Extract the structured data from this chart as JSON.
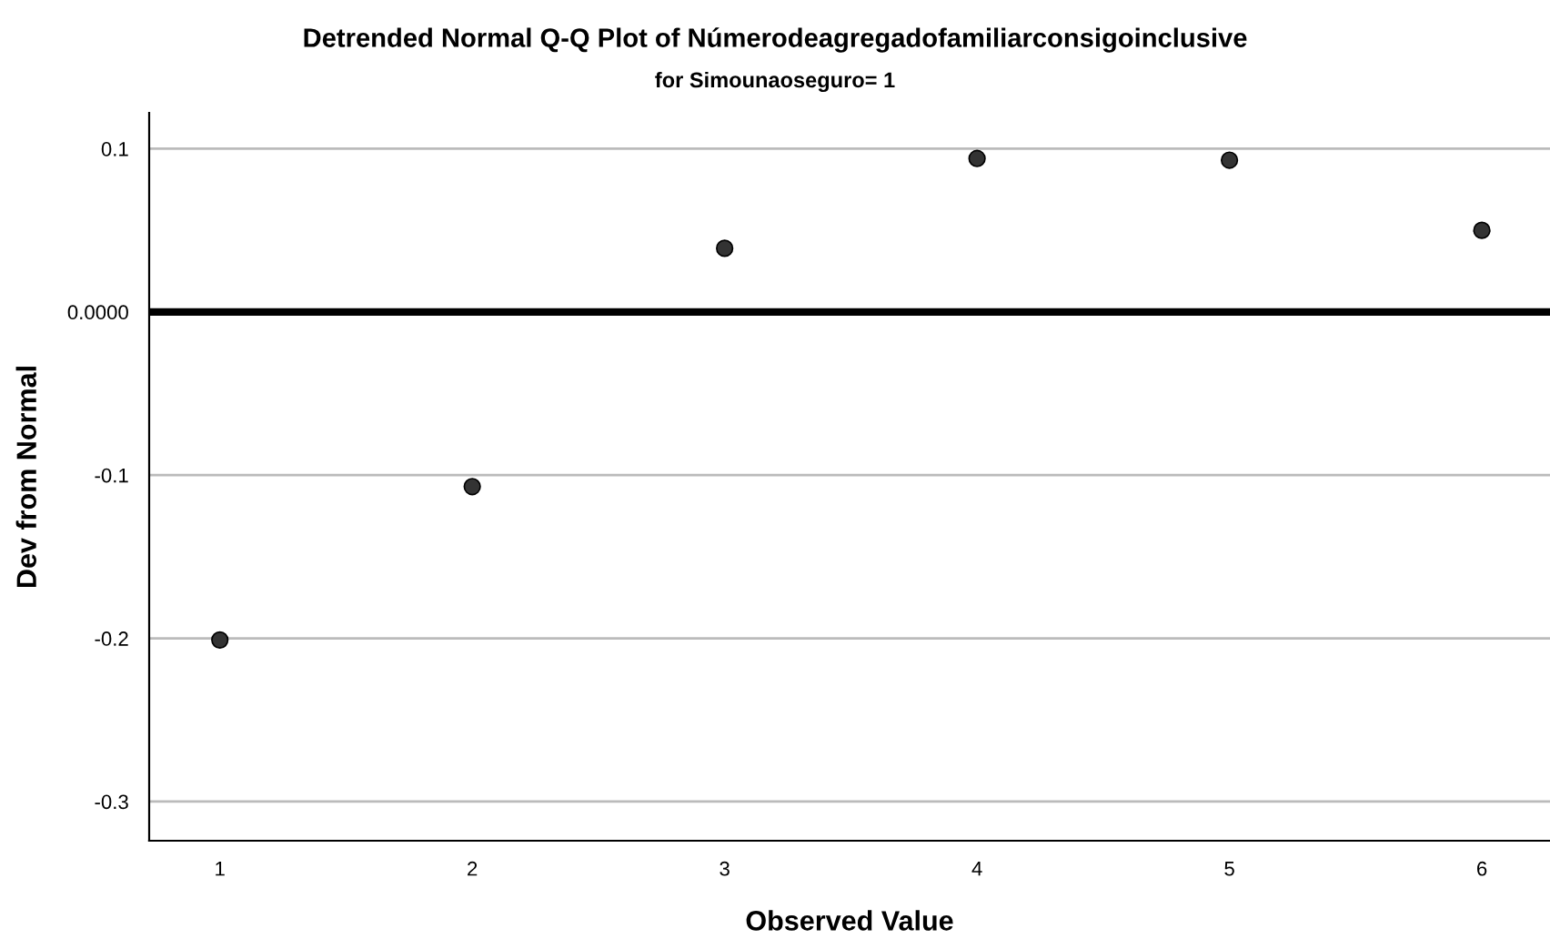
{
  "chart_data": {
    "type": "scatter",
    "title": "Detrended Normal Q-Q Plot of Númerodeagregadofamiliarconsigoinclusive",
    "subtitle": "for Simounaoseguro= 1",
    "xlabel": "Observed Value",
    "ylabel": "Dev from Normal",
    "x": [
      1,
      2,
      3,
      4,
      5,
      6
    ],
    "series": [
      {
        "color": "#333333",
        "values": [
          -0.201,
          -0.107,
          0.039,
          0.094,
          0.093,
          0.05
        ]
      }
    ],
    "xlim": [
      0.72,
      6.27
    ],
    "xticks": [
      1,
      2,
      3,
      4,
      5,
      6
    ],
    "ylim": [
      -0.324,
      0.122
    ],
    "yticks": [
      {
        "value": -0.3,
        "label": "-0.3"
      },
      {
        "value": -0.2,
        "label": "-0.2"
      },
      {
        "value": -0.1,
        "label": "-0.1"
      },
      {
        "value": 0,
        "label": "0.0000"
      },
      {
        "value": 0.1,
        "label": "0.1"
      }
    ],
    "ref_lines": [
      {
        "axis": "y",
        "value": 0,
        "color": "#000000"
      }
    ],
    "grid": "y",
    "marker": "circle"
  }
}
